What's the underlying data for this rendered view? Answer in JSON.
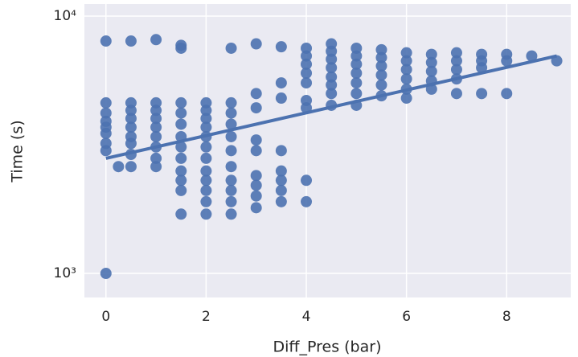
{
  "chart_data": {
    "type": "scatter",
    "x_label": "Diff_Pres (bar)",
    "y_label": "Time (s)",
    "color": "#4c72b0",
    "log_y": true,
    "grid": true,
    "background": "#eaeaf2",
    "xlim": [
      -0.43,
      9.28
    ],
    "ylim": [
      806,
      11140
    ],
    "xticks": [
      0,
      2,
      4,
      6,
      8
    ],
    "yticks": [
      {
        "value": 1000,
        "label": "10³"
      },
      {
        "value": 10000,
        "label": "10⁴"
      }
    ],
    "points": {
      "x": [
        0,
        0,
        0,
        0,
        0,
        0,
        0,
        0,
        0,
        0.25,
        0.5,
        0.5,
        0.5,
        0.5,
        0.5,
        0.5,
        0.5,
        0.5,
        0.5,
        1,
        1,
        1,
        1,
        1,
        1,
        1,
        1,
        1,
        1.5,
        1.5,
        1.5,
        1.5,
        1.5,
        1.5,
        1.5,
        1.5,
        1.5,
        1.5,
        1.5,
        1.5,
        2,
        2,
        2,
        2,
        2,
        2,
        2,
        2,
        2,
        2,
        2,
        2,
        2.5,
        2.5,
        2.5,
        2.5,
        2.5,
        2.5,
        2.5,
        2.5,
        2.5,
        2.5,
        2.5,
        3,
        3,
        3,
        3,
        3,
        3,
        3,
        3,
        3,
        3.5,
        3.5,
        3.5,
        3.5,
        3.5,
        3.5,
        3.5,
        3.5,
        4,
        4,
        4,
        4,
        4,
        4,
        4,
        4,
        4,
        4.5,
        4.5,
        4.5,
        4.5,
        4.5,
        4.5,
        4.5,
        4.5,
        5,
        5,
        5,
        5,
        5,
        5,
        5,
        5.5,
        5.5,
        5.5,
        5.5,
        5.5,
        5.5,
        6,
        6,
        6,
        6,
        6,
        6,
        6.5,
        6.5,
        6.5,
        6.5,
        6.5,
        7,
        7,
        7,
        7,
        7,
        7.5,
        7.5,
        7.5,
        7.5,
        8,
        8,
        8,
        8.5,
        9
      ],
      "values": [
        8000,
        4600,
        4200,
        3900,
        3700,
        3500,
        3200,
        3000,
        1000,
        2600,
        8000,
        4600,
        4300,
        4000,
        3700,
        3400,
        3200,
        2900,
        2600,
        8100,
        4600,
        4300,
        4000,
        3700,
        3400,
        3100,
        2800,
        2600,
        7700,
        7500,
        4600,
        4200,
        3800,
        3400,
        3100,
        2800,
        2500,
        2300,
        2100,
        1700,
        4600,
        4300,
        4000,
        3700,
        3400,
        3100,
        2800,
        2500,
        2300,
        2100,
        1900,
        1700,
        7500,
        4600,
        4200,
        3800,
        3400,
        3000,
        2600,
        2300,
        2100,
        1900,
        1700,
        7800,
        5000,
        4400,
        3300,
        3000,
        2400,
        2200,
        2000,
        1800,
        7600,
        5500,
        4800,
        3000,
        2500,
        2300,
        2100,
        1900,
        7500,
        7000,
        6500,
        6000,
        5500,
        4700,
        4400,
        2300,
        1900,
        7800,
        7300,
        6800,
        6300,
        5800,
        5400,
        5000,
        4500,
        7500,
        7000,
        6500,
        6000,
        5500,
        5000,
        4500,
        7400,
        6900,
        6400,
        5900,
        5400,
        4900,
        7200,
        6700,
        6200,
        5700,
        5200,
        4800,
        7100,
        6600,
        6100,
        5600,
        5200,
        7200,
        6700,
        6200,
        5700,
        5000,
        7100,
        6700,
        6300,
        5000,
        7100,
        6700,
        5000,
        7000,
        6700
      ]
    },
    "fit": {
      "x": [
        0,
        9
      ],
      "values": [
        2800,
        7000
      ]
    }
  }
}
